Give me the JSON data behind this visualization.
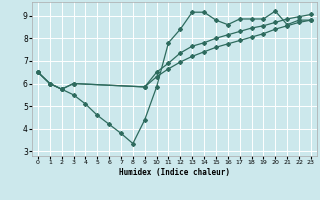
{
  "xlabel": "Humidex (Indice chaleur)",
  "bg_color": "#cce8ec",
  "line_color": "#2e6b5e",
  "grid_color": "#ffffff",
  "xlim": [
    -0.5,
    23.5
  ],
  "ylim": [
    2.8,
    9.6
  ],
  "yticks": [
    3,
    4,
    5,
    6,
    7,
    8,
    9
  ],
  "xticks": [
    0,
    1,
    2,
    3,
    4,
    5,
    6,
    7,
    8,
    9,
    10,
    11,
    12,
    13,
    14,
    15,
    16,
    17,
    18,
    19,
    20,
    21,
    22,
    23
  ],
  "line1_x": [
    0,
    1,
    2,
    3,
    4,
    5,
    6,
    7,
    8,
    9,
    10,
    11,
    12,
    13,
    14,
    15,
    16,
    17,
    18,
    19,
    20,
    21,
    22,
    23
  ],
  "line1_y": [
    6.5,
    6.0,
    5.75,
    5.5,
    5.1,
    4.6,
    4.2,
    3.8,
    3.35,
    4.4,
    5.85,
    7.8,
    8.4,
    9.15,
    9.15,
    8.8,
    8.6,
    8.85,
    8.85,
    8.85,
    9.2,
    8.6,
    8.8,
    8.8
  ],
  "line2_x": [
    0,
    1,
    2,
    3,
    9,
    10,
    11,
    12,
    13,
    14,
    15,
    16,
    17,
    18,
    19,
    20,
    21,
    22,
    23
  ],
  "line2_y": [
    6.5,
    6.0,
    5.75,
    6.0,
    5.85,
    6.3,
    6.65,
    6.95,
    7.2,
    7.4,
    7.6,
    7.75,
    7.9,
    8.05,
    8.2,
    8.4,
    8.55,
    8.7,
    8.8
  ],
  "line3_x": [
    0,
    1,
    2,
    3,
    9,
    10,
    11,
    12,
    13,
    14,
    15,
    16,
    17,
    18,
    19,
    20,
    21,
    22,
    23
  ],
  "line3_y": [
    6.5,
    6.0,
    5.75,
    6.0,
    5.85,
    6.5,
    6.9,
    7.35,
    7.65,
    7.8,
    8.0,
    8.15,
    8.3,
    8.45,
    8.55,
    8.7,
    8.85,
    8.95,
    9.05
  ]
}
